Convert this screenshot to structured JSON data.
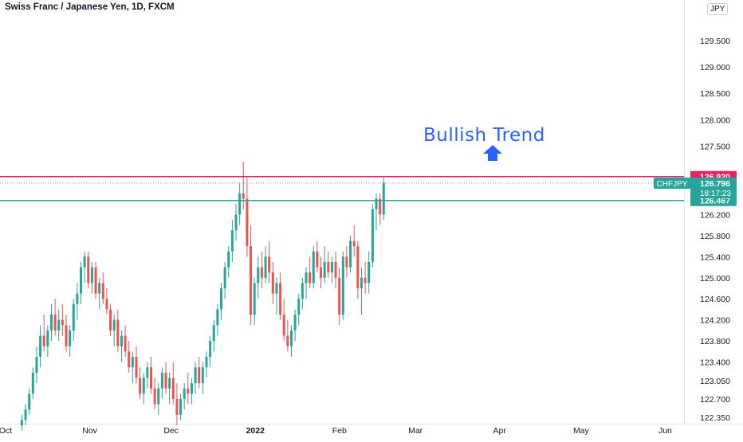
{
  "header": {
    "symbol_title": "Swiss Franc / Japanese Yen, 1D, FXCM",
    "currency": "JPY"
  },
  "annotation": {
    "text": "Bullish Trend",
    "icon": "up-arrow-icon",
    "color": "#2962ff"
  },
  "chart_data": {
    "type": "candlestick",
    "title": "Swiss Franc / Japanese Yen, 1D, FXCM",
    "ylim": [
      122.08,
      130.15
    ],
    "y_ticks": [
      "129.500",
      "129.000",
      "128.500",
      "128.000",
      "127.500",
      "126.920",
      "126.467",
      "126.200",
      "125.800",
      "125.400",
      "125.000",
      "124.600",
      "124.200",
      "123.800",
      "123.400",
      "123.050",
      "122.700",
      "122.350"
    ],
    "x_ticks": [
      "Oct",
      "Nov",
      "Dec",
      "2022",
      "Feb",
      "Mar",
      "Apr",
      "May",
      "Jun"
    ],
    "x_tick_days": [
      0,
      31,
      61,
      92,
      123,
      151,
      182,
      212,
      243
    ],
    "levels": [
      {
        "name": "resistance",
        "value": 126.92,
        "label": "126.920",
        "color": "#e91e63"
      },
      {
        "name": "support",
        "value": 126.467,
        "label": "126.467",
        "color": "#26a69a"
      }
    ],
    "last_price": {
      "symbol": "CHFJPY",
      "value": "126.796",
      "countdown": "18:17:23",
      "price": 126.796,
      "color": "#26a69a"
    },
    "candles_start_day": 6,
    "candles_day_step": 1.36,
    "candles": [
      [
        122.2,
        122.4,
        122.1,
        122.3
      ],
      [
        122.3,
        122.6,
        122.2,
        122.5
      ],
      [
        122.5,
        122.9,
        122.4,
        122.8
      ],
      [
        122.8,
        123.3,
        122.7,
        123.2
      ],
      [
        123.2,
        123.7,
        123.0,
        123.5
      ],
      [
        123.5,
        124.1,
        123.3,
        123.9
      ],
      [
        123.9,
        124.3,
        123.6,
        123.7
      ],
      [
        123.7,
        124.1,
        123.5,
        124.0
      ],
      [
        124.0,
        124.5,
        123.8,
        124.3
      ],
      [
        124.3,
        124.6,
        123.9,
        124.0
      ],
      [
        124.0,
        124.4,
        123.8,
        124.2
      ],
      [
        124.2,
        124.5,
        123.9,
        124.1
      ],
      [
        124.1,
        124.3,
        123.6,
        123.7
      ],
      [
        123.7,
        124.1,
        123.5,
        124.0
      ],
      [
        124.0,
        124.6,
        123.8,
        124.5
      ],
      [
        124.5,
        124.9,
        124.2,
        124.7
      ],
      [
        124.7,
        125.3,
        124.5,
        125.2
      ],
      [
        125.2,
        125.5,
        124.9,
        125.4
      ],
      [
        125.4,
        125.5,
        124.8,
        124.9
      ],
      [
        124.9,
        125.3,
        124.7,
        125.2
      ],
      [
        125.2,
        125.3,
        124.6,
        124.7
      ],
      [
        124.7,
        125.0,
        124.4,
        124.9
      ],
      [
        124.9,
        125.1,
        124.5,
        124.6
      ],
      [
        124.6,
        124.8,
        124.3,
        124.4
      ],
      [
        124.4,
        124.5,
        123.9,
        124.0
      ],
      [
        124.0,
        124.3,
        123.7,
        124.2
      ],
      [
        124.2,
        124.4,
        123.6,
        123.7
      ],
      [
        123.7,
        124.0,
        123.4,
        123.9
      ],
      [
        123.9,
        124.1,
        123.5,
        123.6
      ],
      [
        123.6,
        123.8,
        123.2,
        123.3
      ],
      [
        123.3,
        123.6,
        123.0,
        123.5
      ],
      [
        123.5,
        123.7,
        123.0,
        123.1
      ],
      [
        123.1,
        123.3,
        122.7,
        122.8
      ],
      [
        122.8,
        123.2,
        122.6,
        123.1
      ],
      [
        123.1,
        123.4,
        122.9,
        123.3
      ],
      [
        123.3,
        123.5,
        122.8,
        122.9
      ],
      [
        122.9,
        123.1,
        122.5,
        122.6
      ],
      [
        122.6,
        123.0,
        122.4,
        122.9
      ],
      [
        122.9,
        123.3,
        122.7,
        123.2
      ],
      [
        123.2,
        123.4,
        122.8,
        122.9
      ],
      [
        122.9,
        123.2,
        122.6,
        123.1
      ],
      [
        123.1,
        123.4,
        122.6,
        122.7
      ],
      [
        122.7,
        123.0,
        122.2,
        122.4
      ],
      [
        122.4,
        122.8,
        122.3,
        122.7
      ],
      [
        122.7,
        123.0,
        122.5,
        122.9
      ],
      [
        122.9,
        123.2,
        122.6,
        122.8
      ],
      [
        122.8,
        123.1,
        122.6,
        123.0
      ],
      [
        123.0,
        123.4,
        122.8,
        123.3
      ],
      [
        123.3,
        123.5,
        122.9,
        123.0
      ],
      [
        123.0,
        123.4,
        122.8,
        123.3
      ],
      [
        123.3,
        123.6,
        123.1,
        123.5
      ],
      [
        123.5,
        123.9,
        123.3,
        123.8
      ],
      [
        123.8,
        124.2,
        123.6,
        124.1
      ],
      [
        124.1,
        124.5,
        123.9,
        124.4
      ],
      [
        124.4,
        124.9,
        124.2,
        124.8
      ],
      [
        124.8,
        125.3,
        124.6,
        125.2
      ],
      [
        125.2,
        125.6,
        125.0,
        125.5
      ],
      [
        125.5,
        126.1,
        125.3,
        125.9
      ],
      [
        125.9,
        126.4,
        125.7,
        126.2
      ],
      [
        126.2,
        126.8,
        126.0,
        126.6
      ],
      [
        126.6,
        127.2,
        126.3,
        126.5
      ],
      [
        126.5,
        126.9,
        125.4,
        125.6
      ],
      [
        125.6,
        126.0,
        124.1,
        124.3
      ],
      [
        124.3,
        125.0,
        124.1,
        124.9
      ],
      [
        124.9,
        125.4,
        124.6,
        125.2
      ],
      [
        125.2,
        125.5,
        124.8,
        125.0
      ],
      [
        125.0,
        125.6,
        124.9,
        125.4
      ],
      [
        125.4,
        125.7,
        124.9,
        125.1
      ],
      [
        125.1,
        125.3,
        124.5,
        124.7
      ],
      [
        124.7,
        125.0,
        124.3,
        124.9
      ],
      [
        124.9,
        125.1,
        124.2,
        124.3
      ],
      [
        124.3,
        124.6,
        123.8,
        123.9
      ],
      [
        123.9,
        124.2,
        123.6,
        123.7
      ],
      [
        123.7,
        124.1,
        123.5,
        124.0
      ],
      [
        124.0,
        124.4,
        123.8,
        124.3
      ],
      [
        124.3,
        124.7,
        124.1,
        124.6
      ],
      [
        124.6,
        125.0,
        124.4,
        124.9
      ],
      [
        124.9,
        125.2,
        124.6,
        125.1
      ],
      [
        125.1,
        125.4,
        124.8,
        124.9
      ],
      [
        124.9,
        125.6,
        124.8,
        125.5
      ],
      [
        125.5,
        125.7,
        125.1,
        125.2
      ],
      [
        125.2,
        125.4,
        124.8,
        125.0
      ],
      [
        125.0,
        125.6,
        124.9,
        125.3
      ],
      [
        125.3,
        125.5,
        125.0,
        125.1
      ],
      [
        125.1,
        125.4,
        124.9,
        125.3
      ],
      [
        125.3,
        125.5,
        124.8,
        125.0
      ],
      [
        125.0,
        125.2,
        124.1,
        124.3
      ],
      [
        124.3,
        125.5,
        124.2,
        125.4
      ],
      [
        125.4,
        125.6,
        125.0,
        125.2
      ],
      [
        125.2,
        125.8,
        125.1,
        125.7
      ],
      [
        125.7,
        126.0,
        125.4,
        125.6
      ],
      [
        125.6,
        125.7,
        124.6,
        124.8
      ],
      [
        124.8,
        125.2,
        124.3,
        125.0
      ],
      [
        125.0,
        125.3,
        124.7,
        124.9
      ],
      [
        124.9,
        125.5,
        124.7,
        125.3
      ],
      [
        125.3,
        126.4,
        125.2,
        126.3
      ],
      [
        126.3,
        126.6,
        125.9,
        126.5
      ],
      [
        126.5,
        126.6,
        126.0,
        126.2
      ],
      [
        126.2,
        126.9,
        126.1,
        126.8
      ]
    ]
  }
}
